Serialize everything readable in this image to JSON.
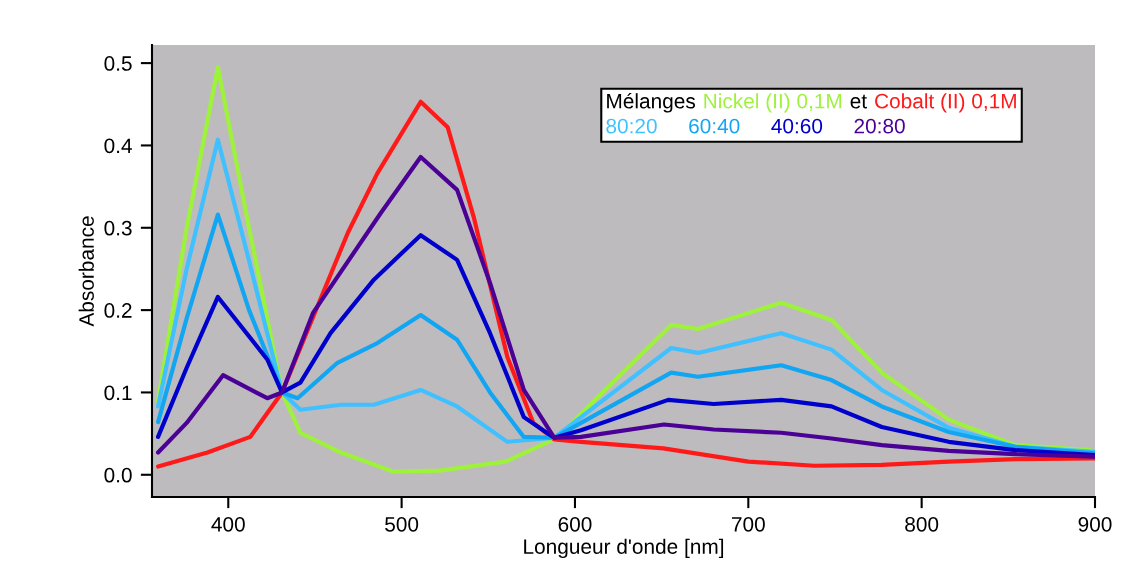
{
  "chart_data": {
    "type": "line",
    "xlabel": "Longueur d'onde [nm]",
    "ylabel": "Absorbance",
    "xlim": [
      356,
      900
    ],
    "xticks": [
      400,
      500,
      600,
      700,
      800,
      900
    ],
    "ylim": [
      -0.027,
      0.522
    ],
    "yticks": [
      {
        "value": 0,
        "label": "0.0"
      },
      {
        "value": 0.1,
        "label": "0.1"
      },
      {
        "value": 0.2,
        "label": "0.2"
      },
      {
        "value": 0.3,
        "label": "0.3"
      },
      {
        "value": 0.4,
        "label": "0.4"
      },
      {
        "value": 0.5,
        "label": "0.5"
      }
    ],
    "grid": false,
    "legend": "top right",
    "legend_title": "Mélanges",
    "annotations": [
      "et"
    ],
    "marker": "none",
    "line_style": "solid",
    "series": [
      {
        "name": "Nickel (II) 0,1M",
        "color": "#9ef23c",
        "x": [
          359.5,
          376,
          394,
          412,
          431,
          441.6,
          465,
          495,
          522,
          560,
          590,
          603,
          655.5,
          671,
          719,
          748,
          777,
          815.6,
          854,
          896.5,
          900
        ],
        "values": [
          0.09,
          0.3,
          0.495,
          0.3,
          0.1,
          0.051,
          0.027,
          0.004,
          0.005,
          0.016,
          0.045,
          0.073,
          0.182,
          0.177,
          0.209,
          0.188,
          0.124,
          0.067,
          0.036,
          0.03,
          0.028
        ]
      },
      {
        "name": "Cobalt (II) 0,1M",
        "color": "#ff1a1a",
        "x": [
          359.5,
          388,
          412.7,
          431,
          449,
          469,
          486,
          511,
          526.6,
          541.6,
          561,
          576,
          588,
          603.5,
          651,
          700,
          738,
          777,
          815.6,
          854,
          900
        ],
        "values": [
          0.01,
          0.027,
          0.046,
          0.1,
          0.192,
          0.294,
          0.366,
          0.453,
          0.422,
          0.313,
          0.143,
          0.063,
          0.043,
          0.04,
          0.032,
          0.016,
          0.011,
          0.012,
          0.016,
          0.019,
          0.02
        ]
      },
      {
        "name": "80:20",
        "color": "#40c0ff",
        "x": [
          359.5,
          376,
          394,
          412,
          431,
          441.6,
          465,
          484,
          511,
          532,
          561,
          588,
          603.5,
          655.5,
          671,
          719,
          748,
          777,
          815.6,
          854,
          900
        ],
        "values": [
          0.083,
          0.25,
          0.407,
          0.26,
          0.1,
          0.079,
          0.085,
          0.085,
          0.103,
          0.083,
          0.04,
          0.045,
          0.07,
          0.154,
          0.148,
          0.172,
          0.152,
          0.103,
          0.057,
          0.034,
          0.028
        ]
      },
      {
        "name": "60:40",
        "color": "#12a6f2",
        "x": [
          359.5,
          376,
          394,
          412,
          431,
          440,
          463,
          486,
          511,
          532,
          551,
          570.5,
          588,
          603.5,
          655.5,
          671,
          719,
          748,
          777,
          815.6,
          854,
          900
        ],
        "values": [
          0.064,
          0.19,
          0.316,
          0.2,
          0.1,
          0.093,
          0.136,
          0.16,
          0.194,
          0.164,
          0.1,
          0.046,
          0.045,
          0.063,
          0.124,
          0.119,
          0.133,
          0.115,
          0.083,
          0.052,
          0.034,
          0.026
        ]
      },
      {
        "name": "40:60",
        "color": "#0000cc",
        "x": [
          359.5,
          376,
          394,
          422.5,
          431,
          441.6,
          459,
          484,
          511,
          532,
          551,
          570.5,
          588,
          603.5,
          653.8,
          680,
          719,
          748,
          777,
          815.6,
          854,
          900
        ],
        "values": [
          0.046,
          0.13,
          0.216,
          0.14,
          0.1,
          0.112,
          0.172,
          0.237,
          0.291,
          0.261,
          0.172,
          0.07,
          0.045,
          0.054,
          0.091,
          0.086,
          0.091,
          0.083,
          0.058,
          0.04,
          0.03,
          0.024
        ]
      },
      {
        "name": "20:80",
        "color": "#4b0096",
        "x": [
          359.5,
          376,
          397,
          422.5,
          431,
          449,
          488,
          511,
          532,
          551,
          570.5,
          588,
          603.5,
          651.4,
          680,
          719,
          748,
          777,
          815.6,
          854,
          900
        ],
        "values": [
          0.027,
          0.063,
          0.121,
          0.093,
          0.1,
          0.197,
          0.318,
          0.386,
          0.346,
          0.233,
          0.103,
          0.045,
          0.046,
          0.061,
          0.055,
          0.051,
          0.044,
          0.036,
          0.029,
          0.025,
          0.022
        ]
      }
    ]
  }
}
